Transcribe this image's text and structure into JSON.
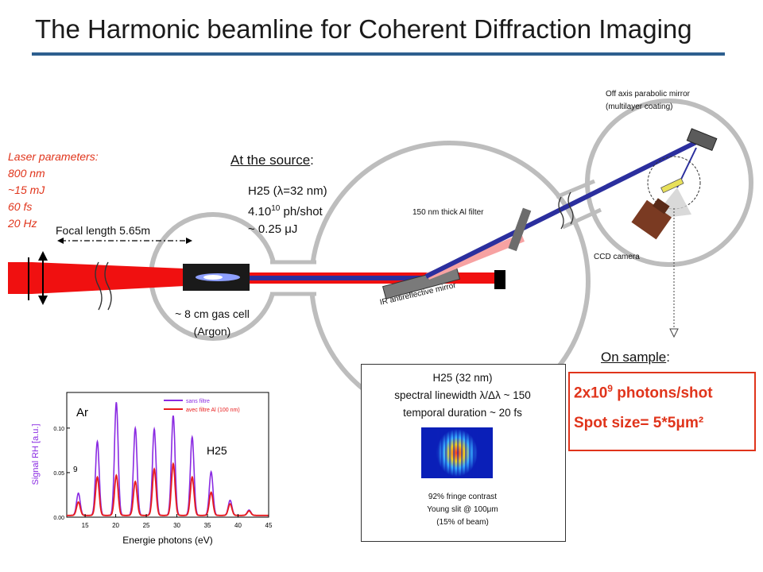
{
  "title": "The Harmonic beamline for Coherent Diffraction Imaging",
  "laser": {
    "heading": "Laser parameters:",
    "wavelength": "800 nm",
    "energy": "~15 mJ",
    "duration": "60 fs",
    "rate": "20 Hz"
  },
  "focal_length": "Focal length 5.65m",
  "source": {
    "heading": "At the source",
    "colon": ":",
    "harmonic_prefix": "H25 (",
    "lambda_symbol": "λ",
    "harmonic_suffix": "=32 nm)",
    "photons_base": "4.10",
    "photons_exp": "10",
    "photons_suffix": " ph/shot",
    "energy": "~ 0.25 μJ"
  },
  "gas_cell": {
    "line1": "~ 8 cm gas cell",
    "line2": "(Argon)"
  },
  "filter_label": "150 nm thick Al filter",
  "ir_mirror_label": "IR antireflective mirror",
  "oap_label": {
    "line1": "Off axis parabolic mirror",
    "line2": "(multilayer coating)"
  },
  "ccd_label": "CCD camera",
  "sample": {
    "heading": "On sample",
    "colon": ":",
    "photons_base": "2x10",
    "photons_exp": "9",
    "photons_suffix": " photons/shot",
    "spot_prefix": "Spot size= 5*5",
    "spot_mu": "μ",
    "spot_suffix": "m²"
  },
  "spectrum_box": {
    "line1": "H25 (32 nm)",
    "line2": "spectral linewidth  λ/Δλ ~ 150",
    "line3": "temporal duration ~ 20 fs",
    "fringe1": "92% fringe contrast",
    "fringe2": "Young slit @ 100μm",
    "fringe3": "(15% of beam)"
  },
  "colors": {
    "laser_red": "#f01010",
    "xuv_blue": "#2b2f9e",
    "accent_red": "#e0341b",
    "title_rule": "#2d5f8f"
  },
  "chart_data": {
    "type": "line",
    "title": "Ar",
    "annotations": [
      "H25",
      "9"
    ],
    "xlabel": "Energie photons (eV)",
    "ylabel": "Signal RH [a.u.]",
    "xlim": [
      12,
      45
    ],
    "ylim": [
      0,
      0.14
    ],
    "xticks": [
      "15",
      "20",
      "25",
      "30",
      "35",
      "40",
      "45"
    ],
    "yticks": [
      "0.00",
      "0.05",
      "0.10"
    ],
    "legend_position": "top-right",
    "series": [
      {
        "name": "sans filtre",
        "color": "#8a2be2",
        "peaks": [
          [
            13.9,
            0.025
          ],
          [
            17.0,
            0.083
          ],
          [
            20.1,
            0.127
          ],
          [
            23.2,
            0.098
          ],
          [
            26.3,
            0.097
          ],
          [
            29.4,
            0.112
          ],
          [
            32.5,
            0.088
          ],
          [
            35.6,
            0.049
          ],
          [
            38.7,
            0.017
          ],
          [
            41.8,
            0.006
          ]
        ]
      },
      {
        "name": "avec filtre Al (100 nm)",
        "color": "#e81c1c",
        "peaks": [
          [
            13.9,
            0.015
          ],
          [
            17.0,
            0.043
          ],
          [
            20.1,
            0.045
          ],
          [
            23.2,
            0.038
          ],
          [
            26.3,
            0.052
          ],
          [
            29.4,
            0.058
          ],
          [
            32.5,
            0.043
          ],
          [
            35.6,
            0.026
          ],
          [
            38.7,
            0.013
          ],
          [
            41.8,
            0.005
          ]
        ]
      }
    ]
  }
}
